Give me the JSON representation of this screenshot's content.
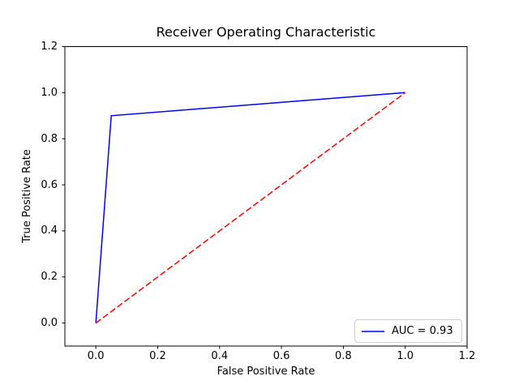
{
  "chart_data": {
    "type": "line",
    "title": "Receiver Operating Characteristic",
    "xlabel": "False Positive Rate",
    "ylabel": "True Positive Rate",
    "xlim": [
      -0.1,
      1.2
    ],
    "ylim": [
      -0.1,
      1.2
    ],
    "xticks": [
      0.0,
      0.2,
      0.4,
      0.6,
      0.8,
      1.0,
      1.2
    ],
    "yticks": [
      0.0,
      0.2,
      0.4,
      0.6,
      0.8,
      1.0,
      1.2
    ],
    "grid": false,
    "background": "#ffffff",
    "frame_color": "#000000",
    "series": [
      {
        "name": "roc-curve",
        "label": "AUC = 0.93",
        "color": "#0000ff",
        "style": "solid",
        "x": [
          0.0,
          0.05,
          1.0
        ],
        "y": [
          0.0,
          0.9,
          1.0
        ]
      },
      {
        "name": "chance-diagonal",
        "label": "",
        "color": "#ff0000",
        "style": "dashed",
        "x": [
          0.0,
          1.0
        ],
        "y": [
          0.0,
          1.0
        ]
      }
    ],
    "legend": {
      "position": "lower right",
      "entries": [
        {
          "label": "AUC = 0.93",
          "color": "#0000ff",
          "style": "solid"
        }
      ]
    }
  }
}
